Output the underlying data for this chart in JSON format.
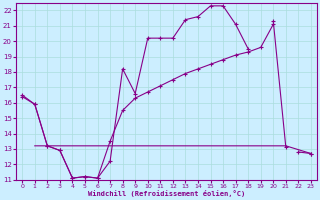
{
  "xlabel": "Windchill (Refroidissement éolien,°C)",
  "bg_color": "#cceeff",
  "line_color": "#880088",
  "grid_color": "#aadddd",
  "ylim": [
    11,
    22.5
  ],
  "xlim": [
    -0.5,
    23.5
  ],
  "yticks": [
    11,
    12,
    13,
    14,
    15,
    16,
    17,
    18,
    19,
    20,
    21,
    22
  ],
  "xticks": [
    0,
    1,
    2,
    3,
    4,
    5,
    6,
    7,
    8,
    9,
    10,
    11,
    12,
    13,
    14,
    15,
    16,
    17,
    18,
    19,
    20,
    21,
    22,
    23
  ],
  "line1_x": [
    0,
    1,
    2,
    3,
    4,
    5,
    6,
    7,
    8,
    9,
    10,
    11,
    12,
    13,
    14,
    15,
    16,
    17,
    18,
    19,
    20,
    21,
    22,
    23
  ],
  "line1_y": [
    16.5,
    15.9,
    13.2,
    12.9,
    11.1,
    11.2,
    11.1,
    12.2,
    18.2,
    16.6,
    20.2,
    20.2,
    20.2,
    21.4,
    21.6,
    22.3,
    22.3,
    21.1,
    19.5,
    null,
    21.3,
    13.1,
    null,
    12.7
  ],
  "line2_x": [
    0,
    1,
    2,
    3,
    4,
    5,
    6,
    7,
    8,
    9,
    10,
    11,
    12,
    13,
    14,
    15,
    16,
    17,
    18,
    19,
    20,
    21,
    22,
    23
  ],
  "line2_y": [
    16.4,
    15.9,
    13.2,
    12.9,
    11.1,
    11.2,
    11.1,
    13.5,
    15.5,
    16.3,
    16.7,
    17.1,
    17.5,
    17.9,
    18.2,
    18.5,
    18.8,
    19.1,
    19.3,
    19.6,
    21.1,
    null,
    12.8,
    12.7
  ],
  "line3_x": [
    1,
    2,
    21,
    23
  ],
  "line3_y": [
    13.2,
    13.2,
    13.2,
    12.7
  ]
}
